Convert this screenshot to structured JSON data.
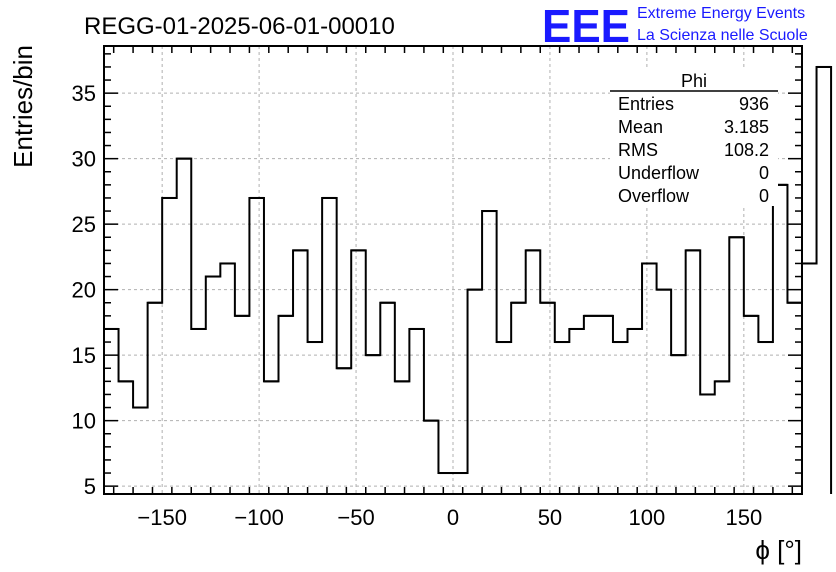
{
  "chart_data": {
    "type": "histogram",
    "title": "REGG-01-2025-06-01-00010",
    "xlabel": "ϕ [°]",
    "ylabel": "Entries/bin",
    "xlim": [
      -180,
      180
    ],
    "ylim": [
      4.4,
      38.6
    ],
    "bin_width": 7.5,
    "x_edges_start": -180,
    "values": [
      17,
      13,
      11,
      19,
      27,
      30,
      17,
      21,
      22,
      18,
      27,
      13,
      18,
      23,
      16,
      27,
      14,
      23,
      15,
      19,
      13,
      17,
      10,
      6,
      6,
      20,
      26,
      16,
      19,
      23,
      19,
      16,
      17,
      18,
      18,
      16,
      17,
      22,
      20,
      15,
      23,
      12,
      13,
      24,
      18,
      16,
      28,
      19,
      22,
      37
    ],
    "x_ticks": [
      -150,
      -100,
      -50,
      0,
      50,
      100,
      150
    ],
    "x_tick_labels": [
      "−150",
      "−100",
      "−50",
      "0",
      "50",
      "100",
      "150"
    ],
    "y_ticks": [
      5,
      10,
      15,
      20,
      25,
      30,
      35
    ],
    "y_tick_labels": [
      "5",
      "10",
      "15",
      "20",
      "25",
      "30",
      "35"
    ],
    "grid": true,
    "legend_placement": "top-right",
    "stats": {
      "name": "Phi",
      "rows": [
        {
          "label": "Entries",
          "value": "936"
        },
        {
          "label": "Mean",
          "value": "3.185"
        },
        {
          "label": "RMS",
          "value": "108.2"
        },
        {
          "label": "Underflow",
          "value": "0"
        },
        {
          "label": "Overflow",
          "value": "0"
        }
      ]
    },
    "colors": {
      "line": "#000000",
      "grid": "#b0b0b0",
      "logo": "#1a1aff"
    }
  },
  "logo": {
    "mark": "EEE",
    "line1": "Extreme Energy Events",
    "line2": "La Scienza nelle Scuole"
  }
}
